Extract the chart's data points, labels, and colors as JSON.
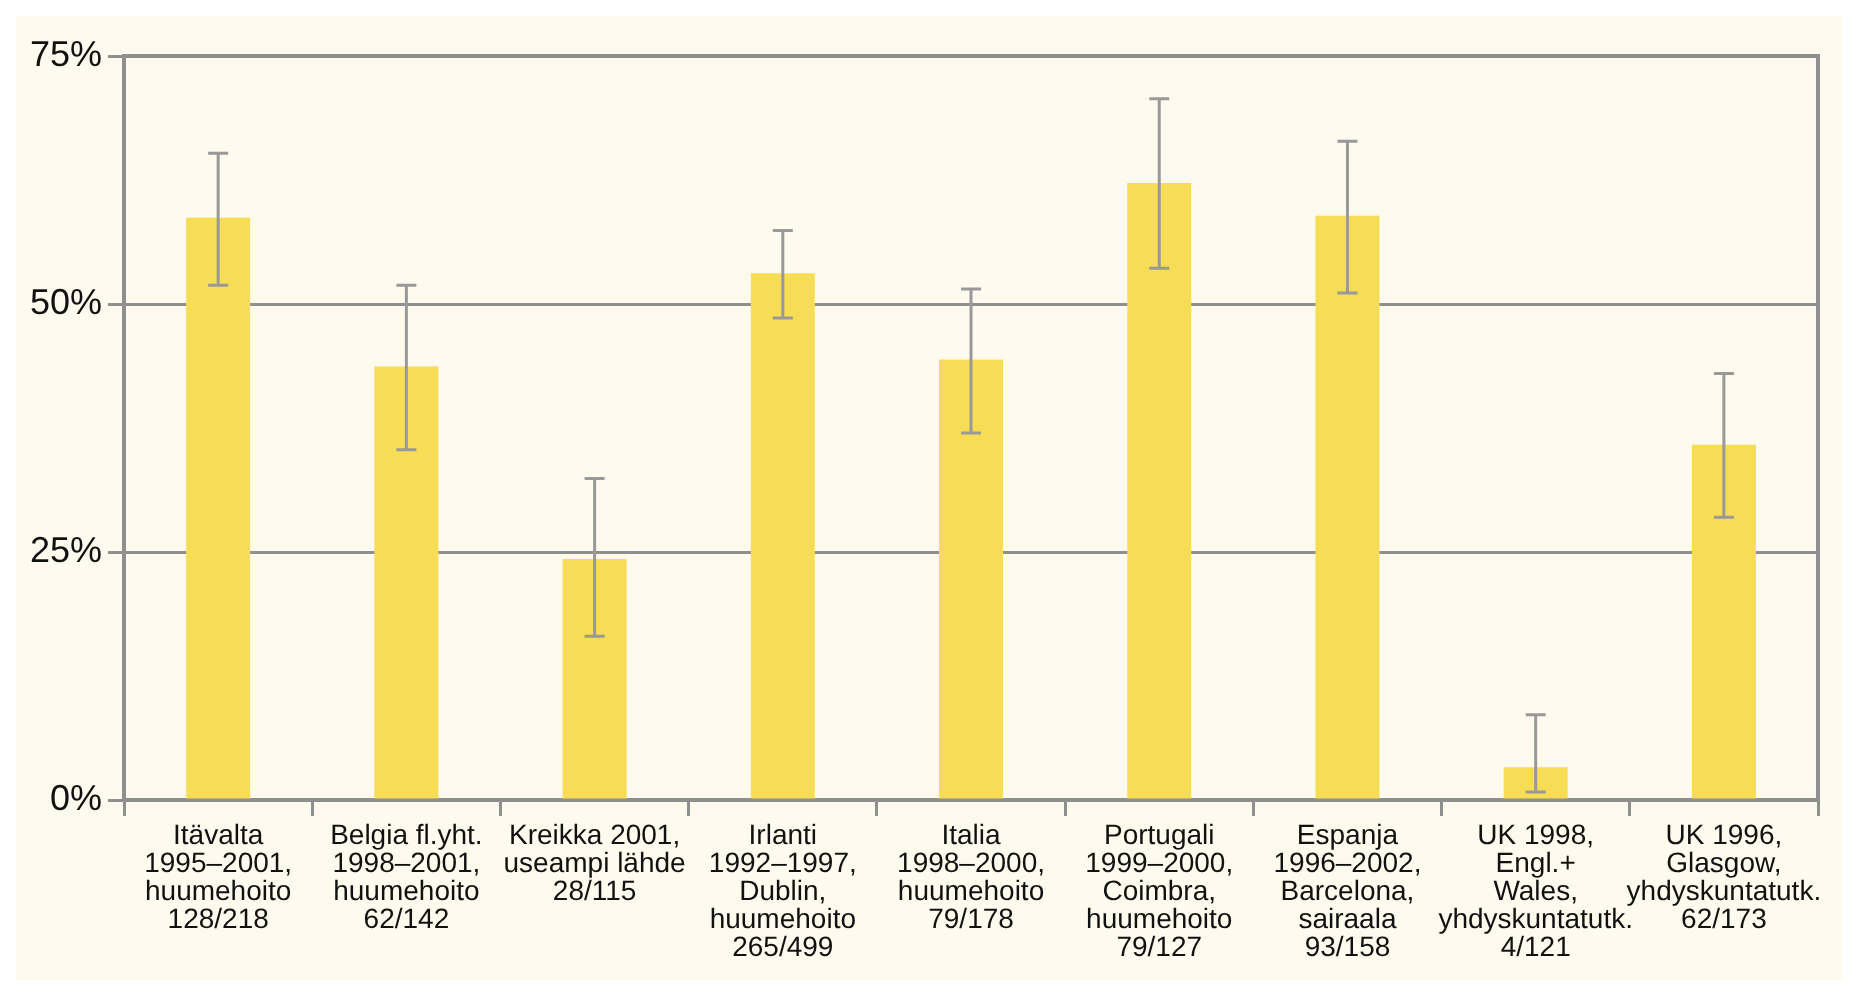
{
  "chart_data": {
    "type": "bar",
    "categories": [
      "Itävalta\n1995–2001,\nhuumehoito\n128/218",
      "Belgia fl.yht.\n1998–2001,\nhuumehoito\n62/142",
      "Kreikka 2001,\nuseampi lähde\n28/115",
      "Irlanti\n1992–1997,\nDublin,\nhuumehoito\n265/499",
      "Italia\n1998–2000,\nhuumehoito\n79/178",
      "Portugali\n1999–2000,\nCoimbra,\nhuumehoito\n79/127",
      "Espanja\n1996–2002,\nBarcelona,\nsairaala\n93/158",
      "UK 1998,\nEngl.+\nWales,\nyhdyskuntatutk.\n4/121",
      "UK 1996,\nGlasgow,\nyhdyskuntatutk.\n62/173"
    ],
    "values": [
      58.7,
      43.7,
      24.3,
      53.1,
      44.4,
      62.2,
      58.9,
      3.3,
      35.8
    ],
    "errors": [
      [
        51.9,
        65.2
      ],
      [
        35.3,
        51.9
      ],
      [
        16.5,
        32.4
      ],
      [
        48.6,
        57.4
      ],
      [
        37.0,
        51.5
      ],
      [
        53.6,
        70.7
      ],
      [
        51.1,
        66.4
      ],
      [
        0.8,
        8.6
      ],
      [
        28.5,
        43.0
      ]
    ],
    "color": "#f7dc55",
    "ylim": [
      0,
      75
    ],
    "yticks": [
      {
        "value": 0,
        "label": "0%"
      },
      {
        "value": 25,
        "label": "25%"
      },
      {
        "value": 50,
        "label": "50%"
      },
      {
        "value": 75,
        "label": "75%"
      }
    ],
    "grid": "y",
    "legend": false
  }
}
